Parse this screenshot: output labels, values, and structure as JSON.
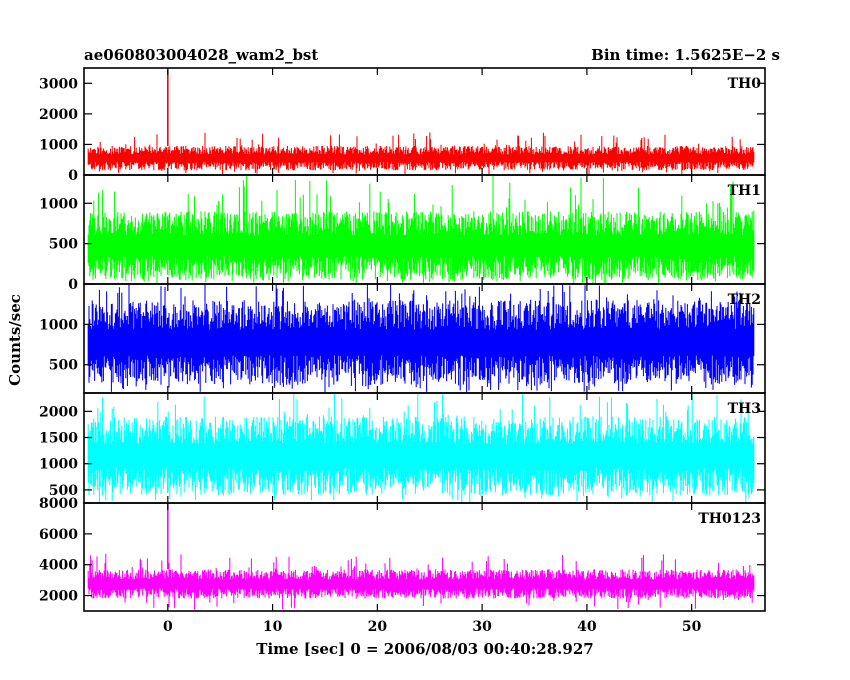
{
  "header": {
    "left_title": "ae060803004028_wam2_bst",
    "right_title": "Bin time: 1.5625E−2 s"
  },
  "chart_data": {
    "type": "line",
    "title": "ae060803004028_wam2_bst",
    "subtitle": "Bin time: 1.5625E−2 s",
    "xlabel": "Time [sec] 0 = 2006/08/03 00:40:28.927",
    "ylabel": "Counts/sec",
    "xlim": [
      -8,
      57
    ],
    "x_data_range": [
      -7.6,
      56.0
    ],
    "xticks": [
      0,
      10,
      20,
      30,
      40,
      50
    ],
    "grid": false,
    "panels": [
      {
        "name": "TH0",
        "color": "#ff0000",
        "ylim": [
          0,
          3500
        ],
        "yticks": [
          0,
          1000,
          2000,
          3000
        ],
        "baseline_range": [
          150,
          950
        ],
        "max_typical": 1400,
        "spikes": [
          {
            "x": 0.0,
            "y": 3450
          }
        ]
      },
      {
        "name": "TH1",
        "color": "#00ff00",
        "ylim": [
          0,
          1350
        ],
        "yticks": [
          0,
          500,
          1000
        ],
        "baseline_range": [
          50,
          900
        ],
        "max_typical": 1350,
        "spikes": []
      },
      {
        "name": "TH2",
        "color": "#0000ff",
        "ylim": [
          150,
          1500
        ],
        "yticks": [
          500,
          1000
        ],
        "baseline_range": [
          250,
          1300
        ],
        "max_typical": 1500,
        "spikes": []
      },
      {
        "name": "TH3",
        "color": "#00ffff",
        "ylim": [
          250,
          2350
        ],
        "yticks": [
          500,
          1000,
          1500,
          2000
        ],
        "baseline_range": [
          400,
          1900
        ],
        "max_typical": 2350,
        "spikes": []
      },
      {
        "name": "TH0123",
        "color": "#ff00ff",
        "ylim": [
          1000,
          8000
        ],
        "yticks": [
          2000,
          4000,
          6000,
          8000
        ],
        "baseline_range": [
          1800,
          3700
        ],
        "max_typical": 4700,
        "spikes": [
          {
            "x": 0.0,
            "y": 8000
          }
        ]
      }
    ]
  }
}
